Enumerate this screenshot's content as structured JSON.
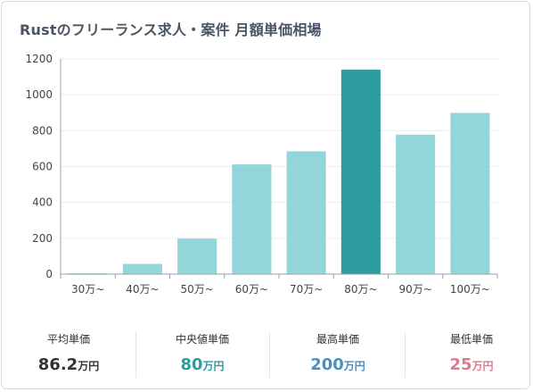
{
  "title": "Rustのフリーランス求人・案件 月額単価相場",
  "chart_data": {
    "type": "bar",
    "categories": [
      "30万~",
      "40万~",
      "50万~",
      "60万~",
      "70万~",
      "80万~",
      "90万~",
      "100万~"
    ],
    "values": [
      5,
      57,
      198,
      612,
      685,
      1140,
      778,
      899
    ],
    "highlight_index": 5,
    "ylim": [
      0,
      1200
    ],
    "yticks": [
      0,
      200,
      400,
      600,
      800,
      1000,
      1200
    ],
    "grid": true,
    "colors": {
      "bar": "#93d6da",
      "highlight": "#2e9c9f",
      "axis": "#9aa0a6",
      "grid": "#ececec",
      "tick_text": "#444444"
    }
  },
  "stats": [
    {
      "label": "平均単価",
      "value": "86.2",
      "unit": "万円",
      "color": "#333333"
    },
    {
      "label": "中央値単価",
      "value": "80",
      "unit": "万円",
      "color": "#2e9c9f"
    },
    {
      "label": "最高単価",
      "value": "200",
      "unit": "万円",
      "color": "#4a8fc4"
    },
    {
      "label": "最低単価",
      "value": "25",
      "unit": "万円",
      "color": "#e07a93"
    }
  ]
}
